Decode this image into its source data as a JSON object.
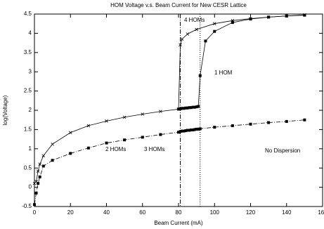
{
  "chart_data": {
    "type": "line",
    "title": "HOM Voltage v.s. Beam Current for New CESR Lattice",
    "xlabel": "Beam Current (mA)",
    "ylabel": "log(Voltage)",
    "xlim": [
      0,
      160
    ],
    "xticks": [
      0,
      20,
      40,
      60,
      80,
      100,
      120,
      140,
      160
    ],
    "ylim": [
      -0.5,
      4.5
    ],
    "yticks": [
      -0.5,
      0,
      0.5,
      1,
      1.5,
      2,
      2.5,
      3,
      3.5,
      4,
      4.5
    ],
    "color": "#000000",
    "series": [
      {
        "marker": "x",
        "linestyle": "solid",
        "x": [
          0,
          1,
          2,
          3,
          5,
          10,
          20,
          30,
          40,
          50,
          60,
          70,
          80,
          81,
          82,
          85,
          90,
          100,
          110,
          120,
          130,
          140,
          150
        ],
        "values": [
          0.1,
          0.15,
          0.42,
          0.6,
          0.82,
          1.12,
          1.42,
          1.6,
          1.72,
          1.82,
          1.9,
          1.97,
          2.03,
          3.7,
          3.85,
          3.98,
          4.1,
          4.25,
          4.33,
          4.38,
          4.42,
          4.45,
          4.48
        ]
      },
      {
        "marker": "square",
        "linestyle": "solid",
        "x": [
          80,
          81,
          82,
          83,
          84,
          85,
          86,
          87,
          88,
          89,
          90,
          91,
          92,
          95,
          100,
          110,
          120,
          130,
          140,
          150
        ],
        "values": [
          2.03,
          2.04,
          2.05,
          2.05,
          2.06,
          2.06,
          2.07,
          2.07,
          2.08,
          2.08,
          2.09,
          2.1,
          2.9,
          3.8,
          4.05,
          4.28,
          4.37,
          4.42,
          4.45,
          4.47
        ]
      },
      {
        "marker": "square",
        "linestyle": "dashdot",
        "x": [
          0,
          1,
          2,
          3,
          5,
          10,
          20,
          30,
          40,
          50,
          60,
          70,
          80,
          81,
          82,
          83,
          84,
          85,
          86,
          87,
          88,
          89,
          90,
          91,
          92,
          100,
          110,
          120,
          130,
          140,
          150
        ],
        "values": [
          -0.45,
          -0.15,
          0.1,
          0.27,
          0.55,
          0.7,
          0.88,
          1.02,
          1.15,
          1.23,
          1.3,
          1.37,
          1.43,
          1.45,
          1.46,
          1.46,
          1.47,
          1.48,
          1.48,
          1.49,
          1.49,
          1.5,
          1.51,
          1.51,
          1.52,
          1.56,
          1.6,
          1.64,
          1.68,
          1.71,
          1.75
        ]
      }
    ],
    "vlines": [
      {
        "x": 81,
        "linestyle": "dashdot"
      },
      {
        "x": 92,
        "linestyle": "dotted"
      }
    ],
    "annotations": [
      "4 HOMs",
      "1 HOM",
      "2 HOMs",
      "3 HOMs",
      "No Dispersion"
    ]
  }
}
